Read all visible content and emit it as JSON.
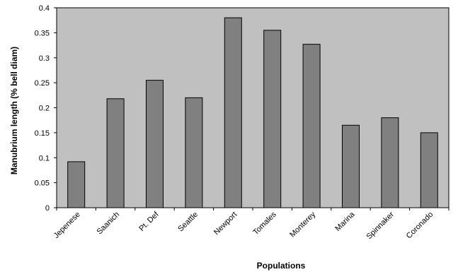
{
  "chart_data": {
    "type": "bar",
    "title": "",
    "xlabel": "Populations",
    "ylabel": "Manubrium length (% bell diam)",
    "categories": [
      "Jepenese",
      "Saanich",
      "Pt. Def",
      "Seattle",
      "Newport",
      "Tomales",
      "Monterey",
      "Marina",
      "Spinnaker",
      "Coronado"
    ],
    "values": [
      0.092,
      0.218,
      0.255,
      0.22,
      0.38,
      0.355,
      0.327,
      0.165,
      0.18,
      0.15
    ],
    "ylim": [
      0,
      0.4
    ],
    "yticks": [
      "0",
      "0.05",
      "0.1",
      "0.15",
      "0.2",
      "0.25",
      "0.3",
      "0.35",
      "0.4"
    ],
    "grid": false,
    "legend": "none",
    "colors": {
      "plot_bg": "#c0c0c0",
      "bar_fill": "#808080",
      "bar_stroke": "#000000"
    }
  }
}
